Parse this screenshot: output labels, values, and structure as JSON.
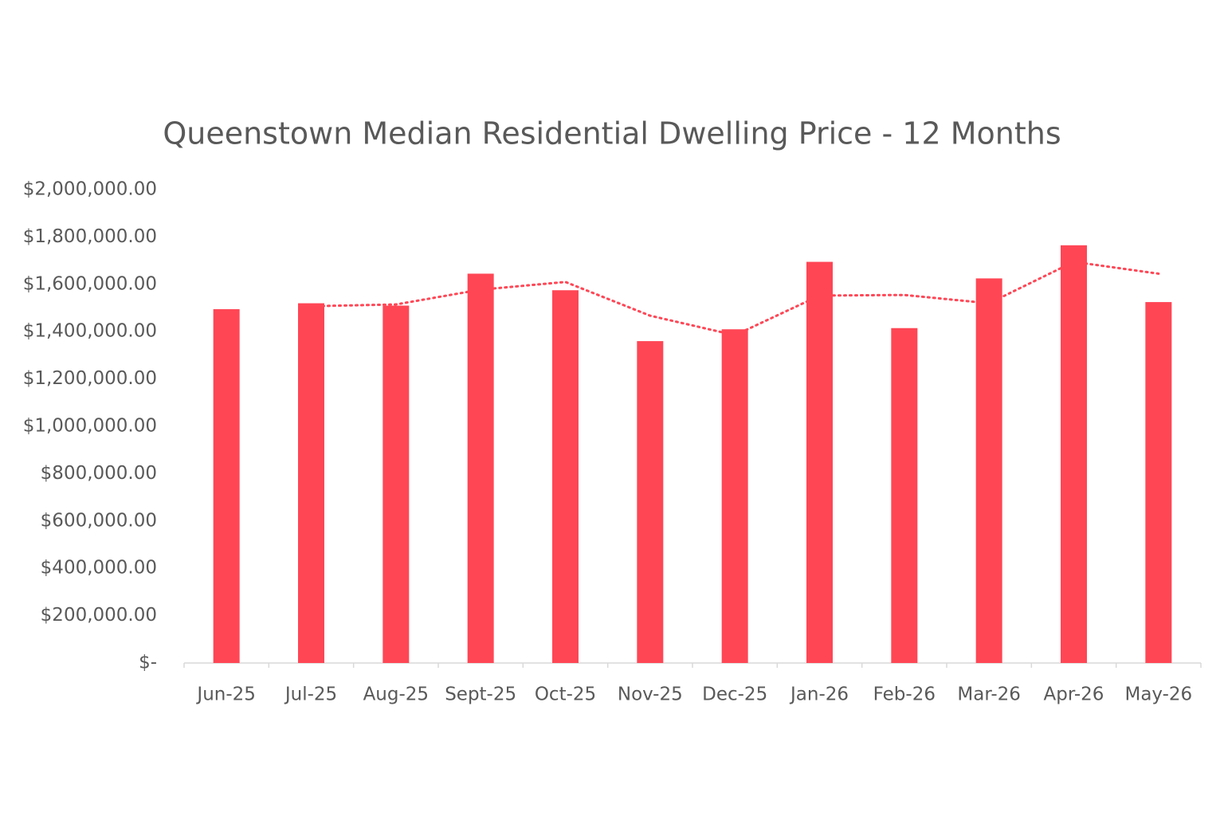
{
  "chart_data": {
    "type": "bar",
    "title": "Queenstown Median Residential Dwelling Price - 12 Months",
    "categories": [
      "Jun-25",
      "Jul-25",
      "Aug-25",
      "Sept-25",
      "Oct-25",
      "Nov-25",
      "Dec-25",
      "Jan-26",
      "Feb-26",
      "Mar-26",
      "Apr-26",
      "May-26"
    ],
    "series": [
      {
        "type": "bar",
        "color": "#ff4655",
        "values": [
          1495000,
          1520000,
          1510000,
          1645000,
          1575000,
          1360000,
          1410000,
          1695000,
          1415000,
          1625000,
          1765000,
          1525000
        ]
      },
      {
        "type": "line",
        "style": "dotted",
        "color": "#ff4655",
        "values": [
          null,
          1507500,
          1515000,
          1577500,
          1610000,
          1467500,
          1385000,
          1552500,
          1555000,
          1520000,
          1695000,
          1645000
        ]
      }
    ],
    "ylim": [
      0,
      2000000
    ],
    "yticks": [
      {
        "value": 0,
        "label": "$-"
      },
      {
        "value": 200000,
        "label": "$200,000.00"
      },
      {
        "value": 400000,
        "label": "$400,000.00"
      },
      {
        "value": 600000,
        "label": "$600,000.00"
      },
      {
        "value": 800000,
        "label": "$800,000.00"
      },
      {
        "value": 1000000,
        "label": "$1,000,000.00"
      },
      {
        "value": 1200000,
        "label": "$1,200,000.00"
      },
      {
        "value": 1400000,
        "label": "$1,400,000.00"
      },
      {
        "value": 1600000,
        "label": "$1,600,000.00"
      },
      {
        "value": 1800000,
        "label": "$1,800,000.00"
      },
      {
        "value": 2000000,
        "label": "$2,000,000.00"
      }
    ],
    "grid": false
  }
}
